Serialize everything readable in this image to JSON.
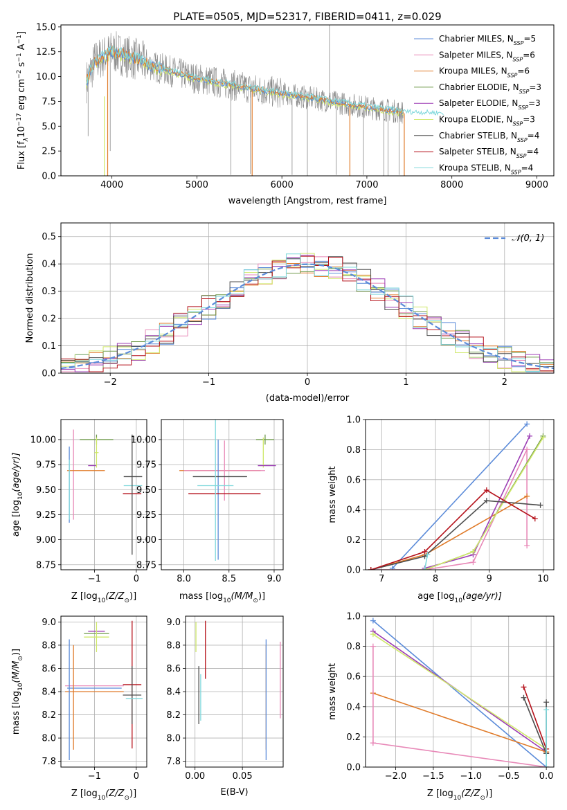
{
  "colors": {
    "chabrier_miles": "#5b8bd9",
    "salpeter_miles": "#e889b8",
    "kroupa_miles": "#e07b2a",
    "chabrier_elodie": "#6f9a4a",
    "salpeter_elodie": "#9d3fb5",
    "kroupa_elodie": "#cfe86a",
    "chabrier_stelib": "#4d4d4d",
    "salpeter_stelib": "#b5121b",
    "kroupa_stelib": "#7fd8dc",
    "data": "#888888",
    "grid": "#b0b0b0",
    "gauss": "#5b8bd9"
  },
  "chart_data": [
    {
      "type": "line",
      "title": "PLATE=0505, MJD=52317, FIBERID=0411, z=0.029",
      "xlabel": "wavelength [Angstrom, rest frame]",
      "ylabel": "Flux [f$_\\lambda$ 10$^{-17}$ erg cm$^{-2}$ s$^{-1}$ A$^{-1}$]",
      "ylabel_parts": {
        "a": "Flux [f",
        "b": "λ",
        "c": "10",
        "d": "−17",
        "e": " erg cm",
        "f": "−2",
        "g": " s",
        "h": "−1",
        "i": " A",
        "j": "−1",
        "k": "]"
      },
      "xlim": [
        3400,
        9200
      ],
      "ylim": [
        0,
        15.2
      ],
      "xticks": [
        "4000",
        "5000",
        "6000",
        "7000",
        "8000",
        "9000"
      ],
      "yticks": [
        "0.0",
        "2.5",
        "5.0",
        "7.5",
        "10.0",
        "12.5",
        "15.0"
      ],
      "grid": false,
      "legend_position": "upper right",
      "legend": [
        {
          "base": "Chabrier MILES, N",
          "sub": "SSP",
          "tail": "=5"
        },
        {
          "base": "Salpeter MILES, N",
          "sub": "SSP",
          "tail": "=6"
        },
        {
          "base": "Kroupa MILES, N",
          "sub": "SSP",
          "tail": "=6"
        },
        {
          "base": "Chabrier ELODIE, N",
          "sub": "SSP",
          "tail": "=3"
        },
        {
          "base": "Salpeter ELODIE, N",
          "sub": "SSP",
          "tail": "=3"
        },
        {
          "base": "Kroupa ELODIE, N",
          "sub": "SSP",
          "tail": "=3"
        },
        {
          "base": "Chabrier STELIB, N",
          "sub": "SSP",
          "tail": "=4"
        },
        {
          "base": "Salpeter STELIB, N",
          "sub": "SSP",
          "tail": "=4"
        },
        {
          "base": "Kroupa STELIB, N",
          "sub": "SSP",
          "tail": "=4"
        }
      ],
      "series_continuum": {
        "x": [
          3700,
          3800,
          3900,
          4000,
          4200,
          4500,
          5000,
          5500,
          6000,
          6500,
          7000,
          7430
        ],
        "y": [
          9.5,
          11.5,
          12.0,
          12.5,
          12.0,
          11.0,
          9.8,
          9.0,
          8.3,
          7.6,
          6.9,
          6.4
        ],
        "note_drops": [
          [
            3950,
            0.0
          ],
          [
            5650,
            0.0
          ],
          [
            6800,
            0.0
          ],
          [
            7440,
            0.0
          ]
        ]
      }
    },
    {
      "type": "histogram",
      "xlabel": "(data-model)/error",
      "ylabel": "Normed distribution",
      "xlim": [
        -2.5,
        2.5
      ],
      "ylim": [
        0,
        0.55
      ],
      "xticks": [
        "−2",
        "−1",
        "0",
        "1",
        "2"
      ],
      "yticks": [
        "0.0",
        "0.1",
        "0.2",
        "0.3",
        "0.4",
        "0.5"
      ],
      "grid": true,
      "legend_position": "upper right",
      "legend_label": "𝒩(0, 1)",
      "gauss": {
        "mu": 0,
        "sigma": 1
      },
      "bin_edges_range": [
        -2.5,
        2.5
      ],
      "bins": 35
    },
    {
      "type": "scatter",
      "xlabel_parts": {
        "a": "Z [log",
        "b": "10",
        "c": "(Z/Z",
        "d": "⊙",
        "e": ")]"
      },
      "ylabel_parts": {
        "a": "age  [log",
        "b": "10",
        "c": "(age/yr)]"
      },
      "xlim": [
        -1.8,
        0.25
      ],
      "ylim": [
        8.7,
        10.2
      ],
      "xticks": [
        "−1",
        "0"
      ],
      "yticks": [
        "8.75",
        "9.00",
        "9.25",
        "9.50",
        "9.75",
        "10.00"
      ],
      "grid": true,
      "crosses": [
        {
          "c": "chabrier_miles",
          "x": -1.6,
          "xerr": 0,
          "y": 9.55,
          "yerr": 0.38
        },
        {
          "c": "salpeter_miles",
          "x": -1.5,
          "xerr": 0,
          "y": 9.65,
          "yerr": 0.45
        },
        {
          "c": "kroupa_miles",
          "x": -1.2,
          "xerr": 0.45,
          "y": 9.69,
          "yerr": 0
        },
        {
          "c": "chabrier_elodie",
          "x": -0.95,
          "xerr": 0.4,
          "y": 10.0,
          "yerr": 0.05
        },
        {
          "c": "salpeter_elodie",
          "x": -1.05,
          "xerr": 0.1,
          "y": 9.74,
          "yerr": 0
        },
        {
          "c": "kroupa_elodie",
          "x": -0.95,
          "xerr": 0.05,
          "y": 9.87,
          "yerr": 0.15
        },
        {
          "c": "chabrier_stelib",
          "x": -0.08,
          "xerr": 0.22,
          "y": 9.63,
          "yerr": 0
        },
        {
          "c": "salpeter_stelib",
          "x": -0.1,
          "xerr": 0.22,
          "y": 9.46,
          "yerr": 0
        },
        {
          "c": "kroupa_stelib",
          "x": -0.08,
          "xerr": 0.22,
          "y": 9.54,
          "yerr": 0
        },
        {
          "c": "chabrier_stelib",
          "x": -0.1,
          "xerr": 0,
          "y": 9.45,
          "yerr": 0.6
        },
        {
          "c": "kroupa_stelib",
          "x": -1.6,
          "xerr": 0,
          "y": 9.5,
          "yerr": 0.3
        }
      ]
    },
    {
      "type": "scatter",
      "xlabel_parts": {
        "a": "mass [log",
        "b": "10",
        "c": "(M/M",
        "d": "⊙",
        "e": ")]"
      },
      "xlim": [
        7.75,
        9.1
      ],
      "ylim": [
        8.7,
        10.2
      ],
      "xticks": [
        "8.0",
        "8.5",
        "9.0"
      ],
      "yticks": [
        "8.75",
        "9.00",
        "9.25",
        "9.50",
        "9.75",
        "10.00"
      ],
      "grid": true,
      "crosses": [
        {
          "c": "kroupa_miles",
          "x": 8.4,
          "xerr": 0.45,
          "y": 9.69,
          "yerr": 0
        },
        {
          "c": "salpeter_miles",
          "x": 8.45,
          "xerr": 0.45,
          "y": 9.69,
          "yerr": 0.3
        },
        {
          "c": "chabrier_miles",
          "x": 8.38,
          "xerr": 0,
          "y": 9.4,
          "yerr": 0.6
        },
        {
          "c": "chabrier_stelib",
          "x": 8.4,
          "xerr": 0.3,
          "y": 9.63,
          "yerr": 0
        },
        {
          "c": "salpeter_stelib",
          "x": 8.45,
          "xerr": 0.4,
          "y": 9.46,
          "yerr": 0
        },
        {
          "c": "kroupa_stelib",
          "x": 8.35,
          "xerr": 0.2,
          "y": 9.54,
          "yerr": 0.75
        },
        {
          "c": "chabrier_elodie",
          "x": 8.9,
          "xerr": 0.1,
          "y": 10.0,
          "yerr": 0.05
        },
        {
          "c": "kroupa_elodie",
          "x": 8.88,
          "xerr": 0,
          "y": 9.87,
          "yerr": 0.15
        },
        {
          "c": "salpeter_elodie",
          "x": 8.92,
          "xerr": 0.1,
          "y": 9.74,
          "yerr": 0
        }
      ]
    },
    {
      "type": "line",
      "xlabel_parts": {
        "a": "age  [log",
        "b": "10",
        "c": "(age/yr)]"
      },
      "ylabel": "mass weight",
      "xlim": [
        6.7,
        10.2
      ],
      "ylim": [
        0,
        1.0
      ],
      "xticks": [
        "7",
        "8",
        "9",
        "10"
      ],
      "yticks": [
        "0.0",
        "0.2",
        "0.4",
        "0.6",
        "0.8",
        "1.0"
      ],
      "grid": true,
      "series": [
        {
          "c": "chabrier_miles",
          "x": [
            7.2,
            9.7
          ],
          "y": [
            0.01,
            0.97
          ]
        },
        {
          "c": "salpeter_miles",
          "x": [
            6.8,
            7.8,
            8.7,
            9.7,
            9.7
          ],
          "y": [
            0.0,
            0.0,
            0.05,
            0.8,
            0.16
          ]
        },
        {
          "c": "kroupa_miles",
          "x": [
            6.8,
            7.8,
            9.7
          ],
          "y": [
            0.0,
            0.1,
            0.49
          ]
        },
        {
          "c": "chabrier_elodie",
          "x": [
            7.8,
            8.7,
            10.0
          ],
          "y": [
            0.0,
            0.12,
            0.89
          ]
        },
        {
          "c": "salpeter_elodie",
          "x": [
            7.8,
            8.7,
            9.75
          ],
          "y": [
            0.01,
            0.1,
            0.89
          ]
        },
        {
          "c": "kroupa_elodie",
          "x": [
            7.8,
            8.7,
            10.0
          ],
          "y": [
            0.0,
            0.12,
            0.88
          ]
        },
        {
          "c": "chabrier_stelib",
          "x": [
            6.8,
            7.8,
            8.95,
            9.95
          ],
          "y": [
            0.0,
            0.09,
            0.46,
            0.43
          ]
        },
        {
          "c": "salpeter_stelib",
          "x": [
            6.8,
            7.8,
            8.95,
            9.85
          ],
          "y": [
            0.0,
            0.12,
            0.53,
            0.34
          ]
        },
        {
          "c": "kroupa_stelib",
          "x": [
            7.8,
            7.85
          ],
          "y": [
            0.0,
            0.1
          ]
        }
      ]
    },
    {
      "type": "scatter",
      "xlabel_parts": {
        "a": "Z [log",
        "b": "10",
        "c": "(Z/Z",
        "d": "⊙",
        "e": ")]"
      },
      "ylabel_parts": {
        "a": "mass [log",
        "b": "10",
        "c": "(M/M",
        "d": "⊙",
        "e": ")]"
      },
      "xlim": [
        -1.8,
        0.25
      ],
      "ylim": [
        7.75,
        9.05
      ],
      "xticks": [
        "−1",
        "0"
      ],
      "yticks": [
        "7.8",
        "8.0",
        "8.2",
        "8.4",
        "8.6",
        "8.8",
        "9.0"
      ],
      "grid": true,
      "crosses": [
        {
          "c": "salpeter_miles",
          "x": -1.0,
          "xerr": 0.7,
          "y": 8.45,
          "yerr": 0
        },
        {
          "c": "chabrier_miles",
          "x": -1.0,
          "xerr": 0.65,
          "y": 8.43,
          "yerr": 0
        },
        {
          "c": "kroupa_miles",
          "x": -1.0,
          "xerr": 0.7,
          "y": 8.4,
          "yerr": 0
        },
        {
          "c": "chabrier_miles",
          "x": -1.6,
          "xerr": 0,
          "y": 8.33,
          "yerr": 0.52
        },
        {
          "c": "kroupa_miles",
          "x": -1.5,
          "xerr": 0,
          "y": 8.35,
          "yerr": 0.45
        },
        {
          "c": "chabrier_elodie",
          "x": -0.95,
          "xerr": 0.3,
          "y": 8.9,
          "yerr": 0
        },
        {
          "c": "salpeter_elodie",
          "x": -0.95,
          "xerr": 0.2,
          "y": 8.92,
          "yerr": 0
        },
        {
          "c": "kroupa_elodie",
          "x": -0.95,
          "xerr": 0.3,
          "y": 8.87,
          "yerr": 0.13
        },
        {
          "c": "salpeter_stelib",
          "x": -0.1,
          "xerr": 0.22,
          "y": 8.46,
          "yerr": 0.55
        },
        {
          "c": "chabrier_stelib",
          "x": -0.1,
          "xerr": 0.22,
          "y": 8.37,
          "yerr": 0.25
        },
        {
          "c": "kroupa_stelib",
          "x": -0.05,
          "xerr": 0.2,
          "y": 8.34,
          "yerr": 0
        }
      ]
    },
    {
      "type": "scatter",
      "xlabel": "E(B-V)",
      "xlim": [
        -0.01,
        0.093
      ],
      "ylim": [
        7.75,
        9.05
      ],
      "xticks": [
        "0.00",
        "0.05"
      ],
      "yticks": [
        "7.8",
        "8.0",
        "8.2",
        "8.4",
        "8.6",
        "8.8",
        "9.0"
      ],
      "grid": true,
      "crosses": [
        {
          "c": "kroupa_elodie",
          "x": 0.001,
          "xerr": 0,
          "y": 8.87,
          "yerr": 0.13
        },
        {
          "c": "chabrier_stelib",
          "x": 0.004,
          "xerr": 0,
          "y": 8.37,
          "yerr": 0.25
        },
        {
          "c": "salpeter_stelib",
          "x": 0.011,
          "xerr": 0,
          "y": 8.76,
          "yerr": 0.25
        },
        {
          "c": "kroupa_stelib",
          "x": 0.006,
          "xerr": 0,
          "y": 8.35,
          "yerr": 0.2
        },
        {
          "c": "kroupa_miles",
          "x": 0.075,
          "xerr": 0,
          "y": 8.35,
          "yerr": 0.45
        },
        {
          "c": "chabrier_miles",
          "x": 0.075,
          "xerr": 0,
          "y": 8.33,
          "yerr": 0.52
        },
        {
          "c": "salpeter_miles",
          "x": 0.09,
          "xerr": 0,
          "y": 8.5,
          "yerr": 0.33
        }
      ]
    },
    {
      "type": "line",
      "xlabel_parts": {
        "a": "Z [log",
        "b": "10",
        "c": "(Z/Z",
        "d": "⊙",
        "e": ")]"
      },
      "ylabel": "mass weight",
      "xlim": [
        -2.4,
        0.1
      ],
      "ylim": [
        0,
        1.0
      ],
      "xticks": [
        "−2.0",
        "−1.5",
        "−1.0",
        "−0.5",
        "0.0"
      ],
      "yticks": [
        "0.0",
        "0.2",
        "0.4",
        "0.6",
        "0.8",
        "1.0"
      ],
      "grid": true,
      "series": [
        {
          "c": "chabrier_miles",
          "x": [
            -2.3,
            0.0
          ],
          "y": [
            0.97,
            0.0
          ]
        },
        {
          "c": "salpeter_elodie",
          "x": [
            -2.3,
            0.0
          ],
          "y": [
            0.9,
            0.1
          ]
        },
        {
          "c": "kroupa_elodie",
          "x": [
            -2.3,
            0.0
          ],
          "y": [
            0.88,
            0.12
          ]
        },
        {
          "c": "kroupa_miles",
          "x": [
            -2.3,
            0.0
          ],
          "y": [
            0.49,
            0.1
          ]
        },
        {
          "c": "salpeter_miles",
          "x": [
            -2.3,
            0.0
          ],
          "y": [
            0.16,
            0.0
          ]
        },
        {
          "c": "salpeter_miles",
          "x": [
            -2.3,
            -2.3
          ],
          "y": [
            0.16,
            0.8
          ]
        },
        {
          "c": "salpeter_stelib",
          "x": [
            -0.3,
            0.0
          ],
          "y": [
            0.53,
            0.12
          ]
        },
        {
          "c": "chabrier_stelib",
          "x": [
            -0.3,
            0.0
          ],
          "y": [
            0.46,
            0.09
          ]
        },
        {
          "c": "chabrier_stelib",
          "x": [
            0.0,
            0.0
          ],
          "y": [
            0.09,
            0.43
          ]
        },
        {
          "c": "kroupa_stelib",
          "x": [
            0.0,
            0.0
          ],
          "y": [
            0.0,
            0.38
          ]
        }
      ]
    }
  ]
}
